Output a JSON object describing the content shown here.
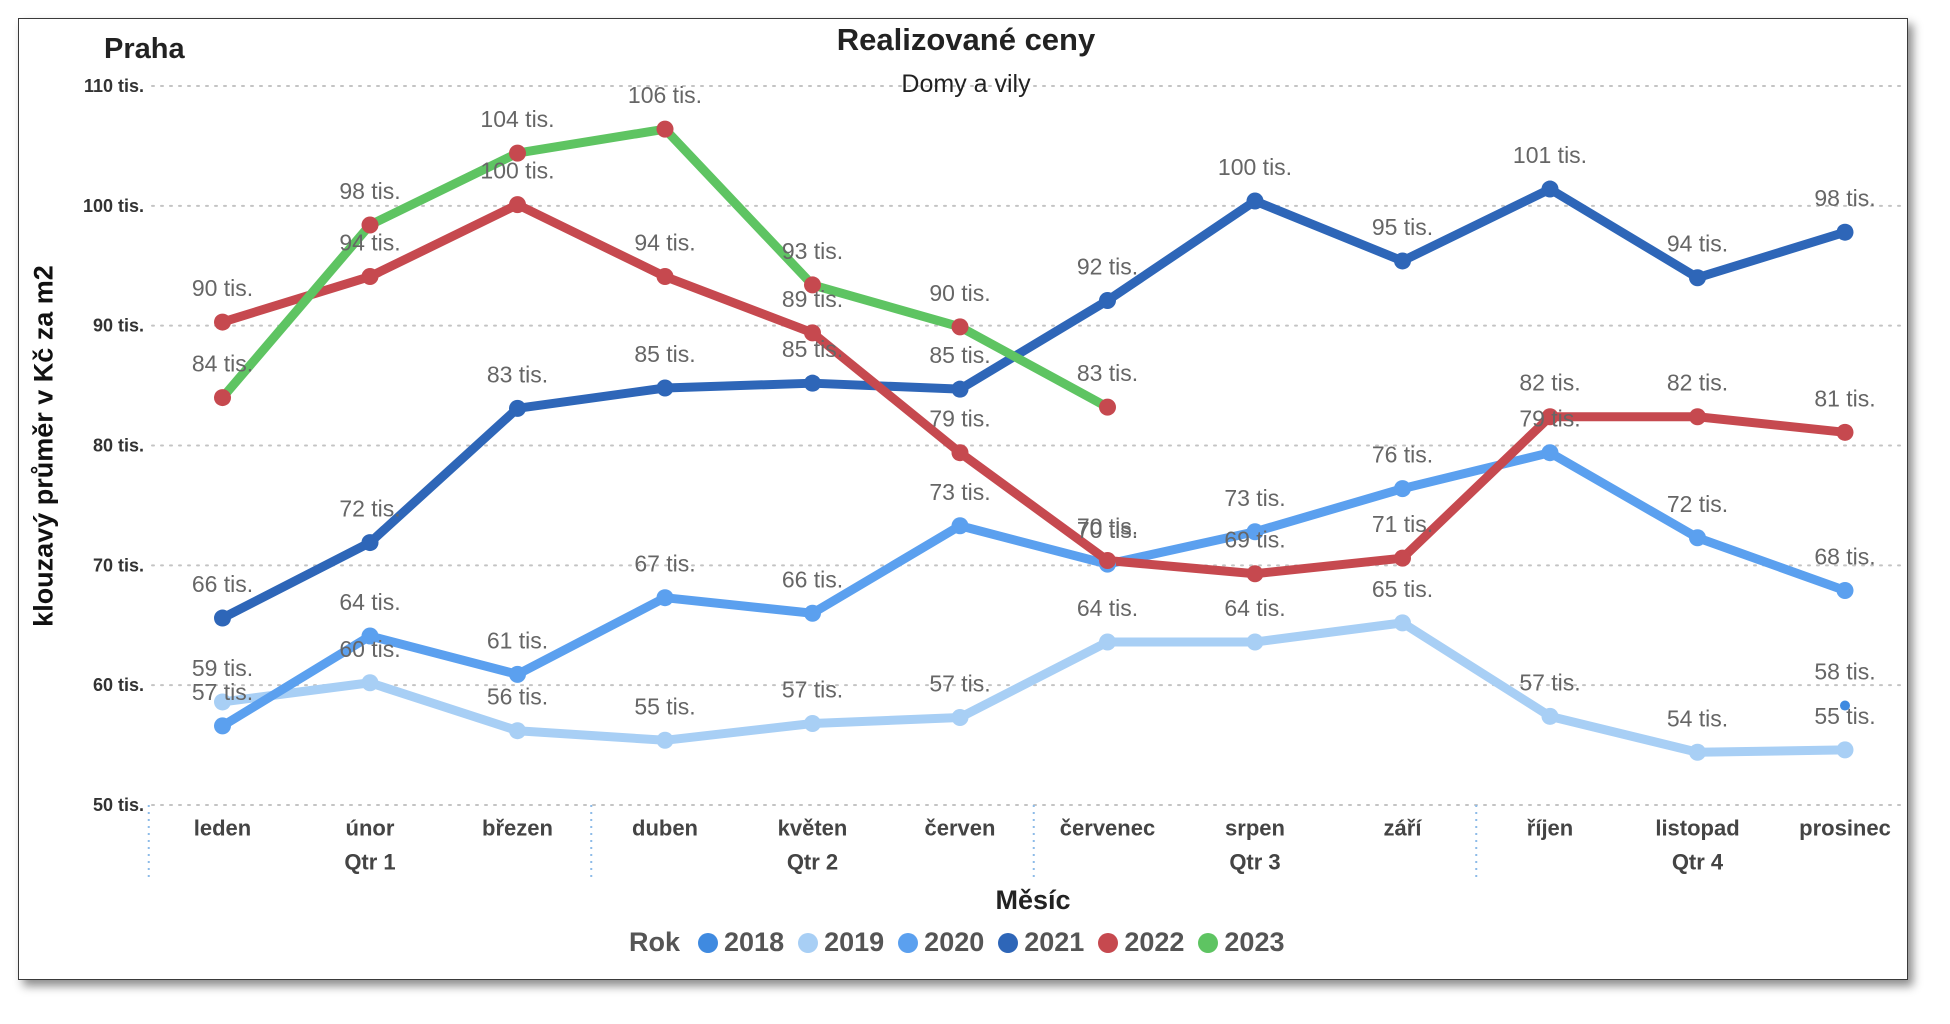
{
  "report": {
    "location": "Praha"
  },
  "chart_data": {
    "type": "line",
    "title": "Realizované ceny",
    "subtitle": "Domy a vily",
    "xlabel": "Měsíc",
    "ylabel": "klouzavý průměr v Kč za m2",
    "categories": [
      "leden",
      "únor",
      "březen",
      "duben",
      "květen",
      "červen",
      "červenec",
      "srpen",
      "září",
      "říjen",
      "listopad",
      "prosinec"
    ],
    "quarters": [
      "Qtr 1",
      "Qtr 2",
      "Qtr 3",
      "Qtr 4"
    ],
    "ylim": [
      50,
      110
    ],
    "y_ticks": [
      {
        "value": 50,
        "label": "50 tis."
      },
      {
        "value": 60,
        "label": "60 tis."
      },
      {
        "value": 70,
        "label": "70 tis."
      },
      {
        "value": 80,
        "label": "80 tis."
      },
      {
        "value": 90,
        "label": "90 tis."
      },
      {
        "value": 100,
        "label": "100 tis."
      },
      {
        "value": 110,
        "label": "110 tis."
      }
    ],
    "grid": true,
    "data_labels": true,
    "legend": {
      "title": "Rok",
      "position": "bottom"
    },
    "series": [
      {
        "name": "2018",
        "color": "#3f8ae0",
        "values": [
          null,
          null,
          null,
          null,
          null,
          null,
          null,
          null,
          null,
          null,
          null,
          58.3
        ],
        "labels": [
          null,
          null,
          null,
          null,
          null,
          null,
          null,
          null,
          null,
          null,
          null,
          "58 tis."
        ]
      },
      {
        "name": "2019",
        "color": "#a8cff5",
        "values": [
          58.6,
          60.2,
          56.2,
          55.4,
          56.8,
          57.3,
          63.6,
          63.6,
          65.2,
          57.4,
          54.4,
          54.6
        ],
        "labels": [
          "59 tis.",
          "60 tis.",
          "56 tis.",
          "55 tis.",
          "57 tis.",
          "57 tis.",
          "64 tis.",
          "64 tis.",
          "65 tis.",
          "57 tis.",
          "54 tis.",
          "55 tis."
        ]
      },
      {
        "name": "2020",
        "color": "#5ba0ef",
        "values": [
          56.6,
          64.1,
          60.9,
          67.3,
          66.0,
          73.3,
          70.1,
          72.8,
          76.4,
          79.4,
          72.3,
          67.9
        ],
        "labels": [
          "57 tis.",
          "64 tis.",
          "61 tis.",
          "67 tis.",
          "66 tis.",
          "73 tis.",
          "70 tis.",
          "73 tis.",
          "76 tis.",
          "79 tis.",
          "72 tis.",
          "68 tis."
        ]
      },
      {
        "name": "2021",
        "color": "#2e66b8",
        "values": [
          65.6,
          71.9,
          83.1,
          84.8,
          85.2,
          84.7,
          92.1,
          100.4,
          95.4,
          101.4,
          94.0,
          97.8
        ],
        "labels": [
          "66 tis.",
          "72 tis.",
          "83 tis.",
          "85 tis.",
          "85 tis.",
          "85 tis.",
          "92 tis.",
          "100 tis.",
          "95 tis.",
          "101 tis.",
          "94 tis.",
          "98 tis."
        ]
      },
      {
        "name": "2022",
        "color": "#c6494f",
        "values": [
          90.3,
          94.1,
          100.1,
          94.1,
          89.4,
          79.4,
          70.4,
          69.3,
          70.6,
          82.4,
          82.4,
          81.1
        ],
        "labels": [
          "90 tis.",
          "94 tis.",
          "100 tis.",
          "94 tis.",
          "89 tis.",
          "79 tis.",
          "70 tis.",
          "69 tis.",
          "71 tis.",
          "82 tis.",
          "82 tis.",
          "81 tis."
        ]
      },
      {
        "name": "2023",
        "color": "#5ec462",
        "marker_color": "#c6494f",
        "values": [
          84.0,
          98.4,
          104.4,
          106.4,
          93.4,
          89.9,
          83.2,
          null,
          null,
          null,
          null,
          null
        ],
        "labels": [
          "84 tis.",
          "98 tis.",
          "104 tis.",
          "106 tis.",
          "93 tis.",
          "90 tis.",
          "83 tis.",
          null,
          null,
          null,
          null,
          null
        ]
      }
    ]
  }
}
